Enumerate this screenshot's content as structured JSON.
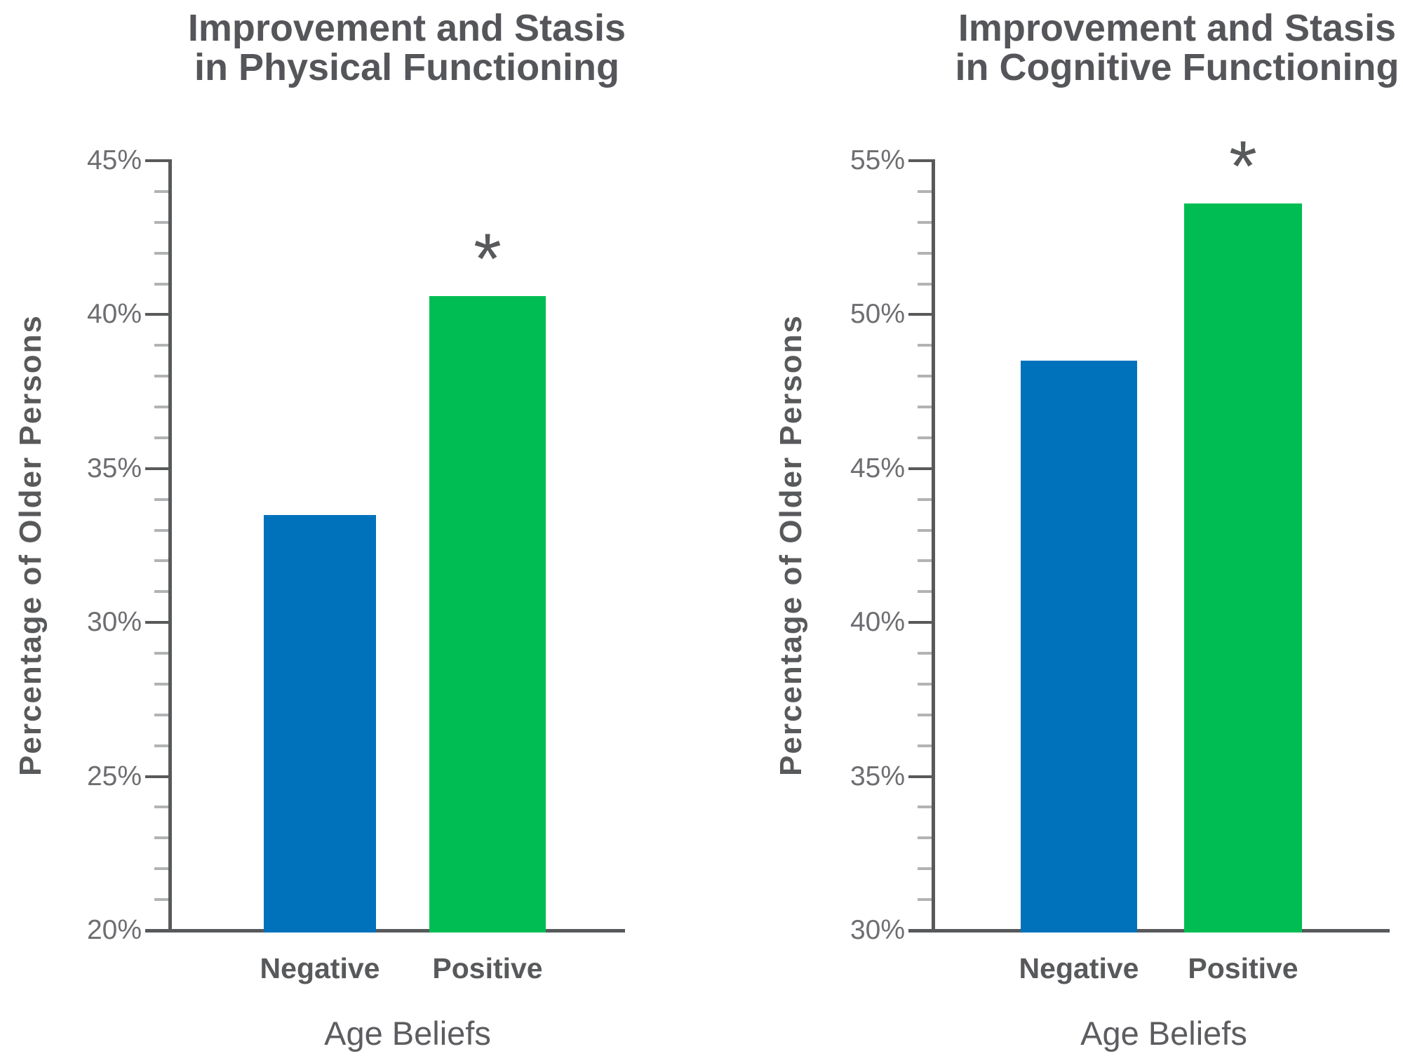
{
  "figure": {
    "background": "#ffffff",
    "significance_marker": "*"
  },
  "colors": {
    "bar_negative": "#0072bc",
    "bar_positive": "#00bd53",
    "axis": "#58595b",
    "major_tick": "#58595b",
    "minor_tick": "#b1b3b5",
    "title_text": "#55565a",
    "tick_label_text": "#6d6e71",
    "category_text": "#58595b"
  },
  "chart_data": [
    {
      "type": "bar",
      "title_line1": "Improvement and Stasis",
      "title_line2": "in Physical Functioning",
      "ylabel": "Percentage of Older Persons",
      "xlabel": "Age Beliefs",
      "categories": [
        "Negative",
        "Positive"
      ],
      "values": [
        33.5,
        40.6
      ],
      "bar_colors": [
        "#0072bc",
        "#00bd53"
      ],
      "significant": [
        false,
        true
      ],
      "ylim": [
        20,
        45
      ],
      "ytick_major_step": 5,
      "ytick_minor_step": 1,
      "ytick_suffix": "%",
      "grid": false,
      "legend": "none"
    },
    {
      "type": "bar",
      "title_line1": "Improvement and Stasis",
      "title_line2": "in Cognitive Functioning",
      "ylabel": "Percentage of Older Persons",
      "xlabel": "Age Beliefs",
      "categories": [
        "Negative",
        "Positive"
      ],
      "values": [
        48.5,
        53.6
      ],
      "bar_colors": [
        "#0072bc",
        "#00bd53"
      ],
      "significant": [
        false,
        true
      ],
      "ylim": [
        30,
        55
      ],
      "ytick_major_step": 5,
      "ytick_minor_step": 1,
      "ytick_suffix": "%",
      "grid": false,
      "legend": "none"
    }
  ]
}
